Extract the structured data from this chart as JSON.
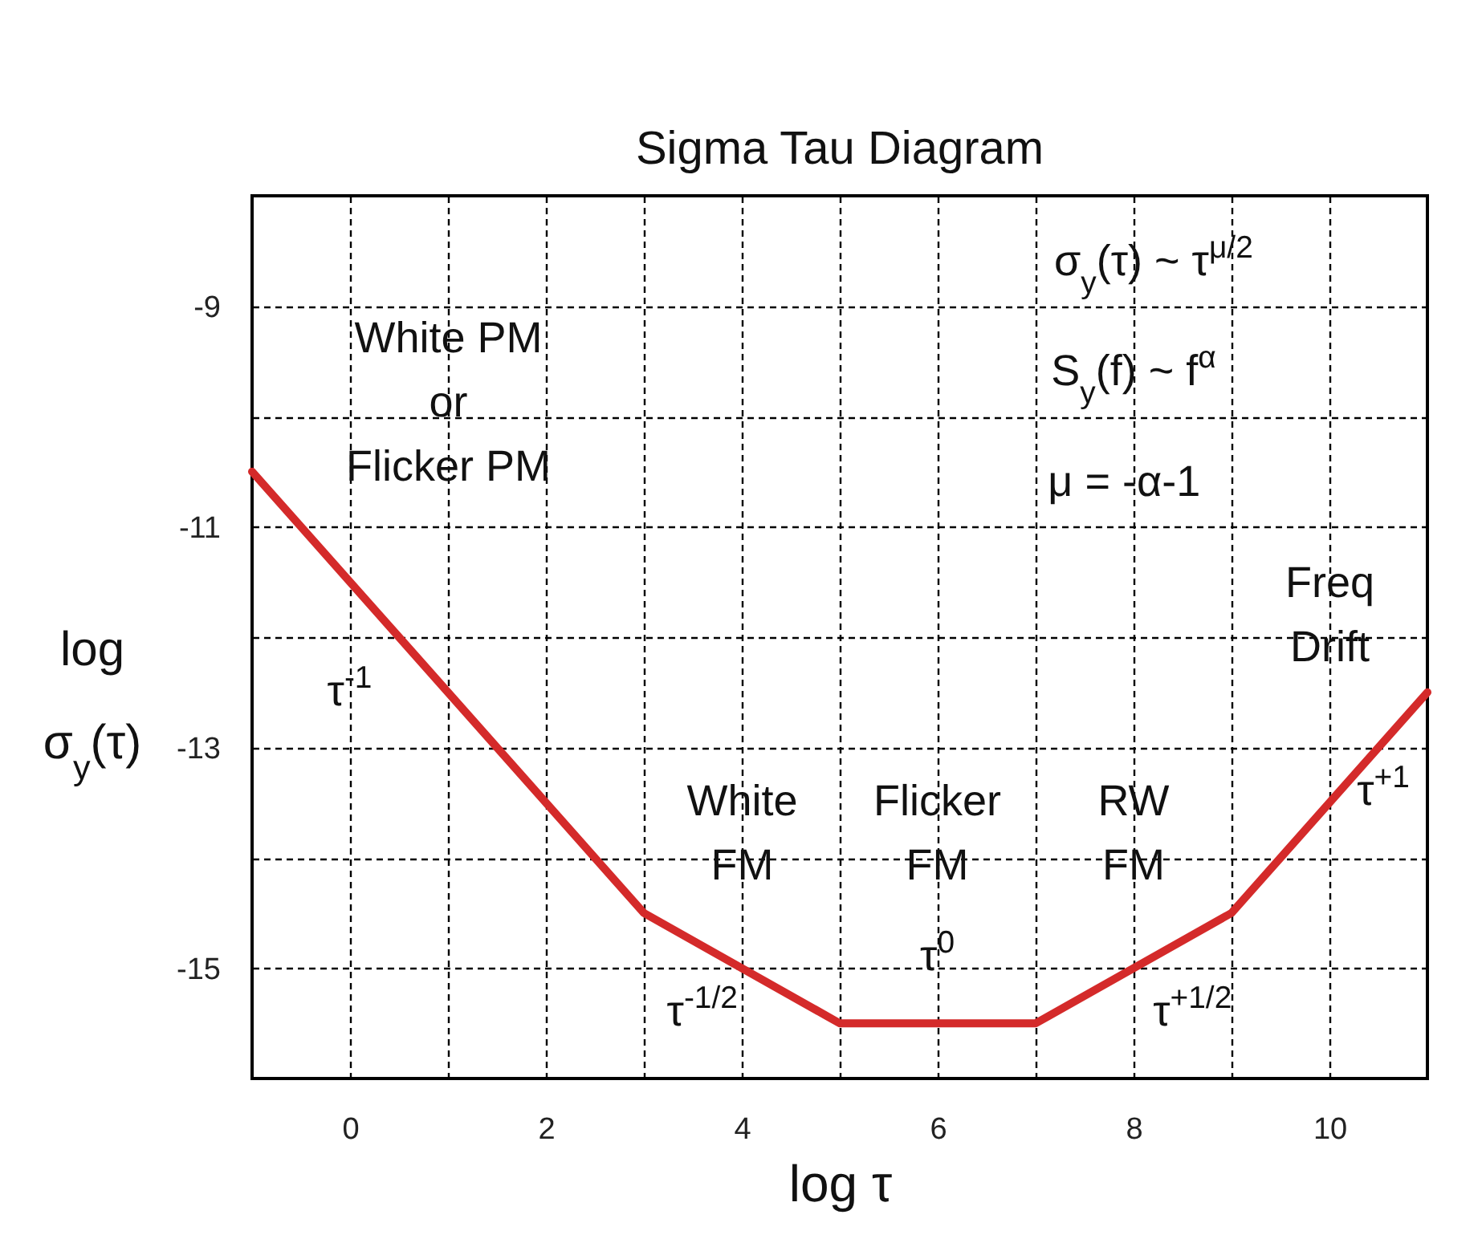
{
  "chart_data": {
    "type": "line",
    "title": "Sigma Tau Diagram",
    "xlabel": "log τ",
    "ylabel": "log σ$_{y}$(τ)",
    "x": [
      -1,
      3,
      5,
      7,
      9,
      11
    ],
    "series": [
      {
        "color": "#d42a2a",
        "values": [
          -10.5,
          -14.5,
          -15.5,
          -15.5,
          -14.5,
          -12.5
        ]
      }
    ],
    "xlim": [
      -1,
      11
    ],
    "xticks": [
      0,
      {
        "value": 1,
        "label": null
      },
      2,
      {
        "value": 3,
        "label": null
      },
      4,
      {
        "value": 5,
        "label": null
      },
      6,
      {
        "value": 7,
        "label": null
      },
      8,
      {
        "value": 9,
        "label": null
      },
      10
    ],
    "ylim": [
      -16,
      -8
    ],
    "yticks": [
      -9,
      {
        "value": -10,
        "label": null
      },
      -11,
      {
        "value": -12,
        "label": null
      },
      -13,
      {
        "value": -14,
        "label": null
      },
      -15
    ],
    "grid": true,
    "line_style": "solid",
    "marker": "none",
    "annotations": [
      "White PM\nor\nFlicker PM",
      "σ$_{y}$(τ) ~ τ$^{μ/2}$",
      "S$_{y}$(f) ~ f$^{α}$",
      "μ = -α-1",
      "Freq\nDrift",
      "White\nFM",
      "Flicker\nFM",
      "RW\nFM",
      "τ$^{-1}$",
      "τ$^{-1/2}$",
      "τ$^{0}$",
      "τ$^{+1/2}$",
      "τ$^{+1}$"
    ]
  }
}
